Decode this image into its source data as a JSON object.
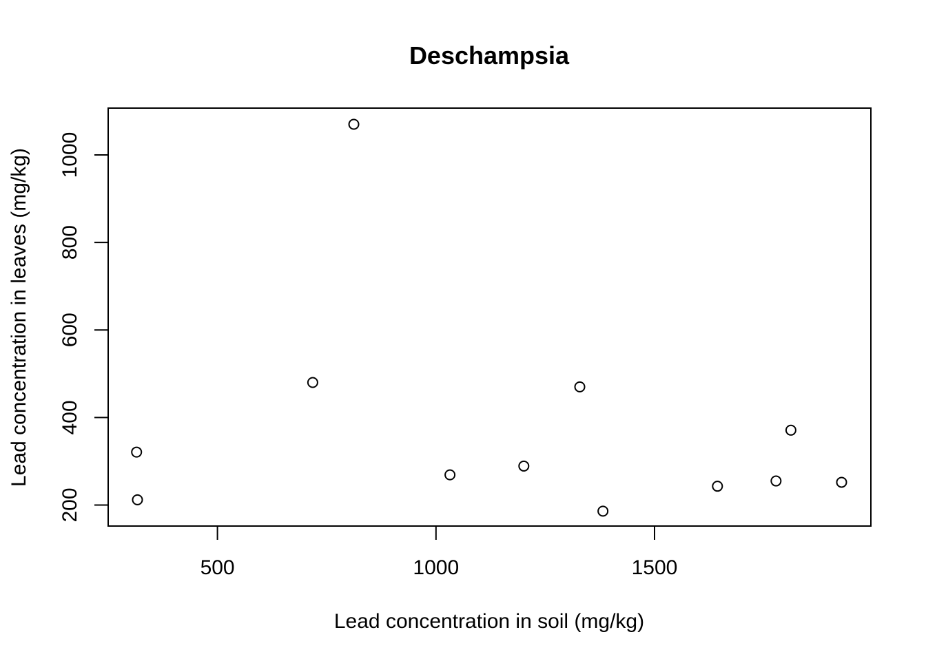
{
  "chart_data": {
    "type": "scatter",
    "title": "Deschampsia",
    "xlabel": "Lead concentration in soil (mg/kg)",
    "ylabel": "Lead concentration in leaves (mg/kg)",
    "xlim": [
      250,
      1995
    ],
    "ylim": [
      152,
      1107
    ],
    "xticks": [
      500,
      1000,
      1500
    ],
    "yticks": [
      200,
      400,
      600,
      800,
      1000
    ],
    "grid": false,
    "legend": "none",
    "point_style": "open-circle",
    "points": [
      {
        "x": 315,
        "y": 321
      },
      {
        "x": 317,
        "y": 212
      },
      {
        "x": 718,
        "y": 480
      },
      {
        "x": 812,
        "y": 1070
      },
      {
        "x": 1032,
        "y": 269
      },
      {
        "x": 1201,
        "y": 289
      },
      {
        "x": 1329,
        "y": 470
      },
      {
        "x": 1382,
        "y": 186
      },
      {
        "x": 1644,
        "y": 243
      },
      {
        "x": 1778,
        "y": 255
      },
      {
        "x": 1812,
        "y": 371
      },
      {
        "x": 1928,
        "y": 252
      }
    ]
  }
}
